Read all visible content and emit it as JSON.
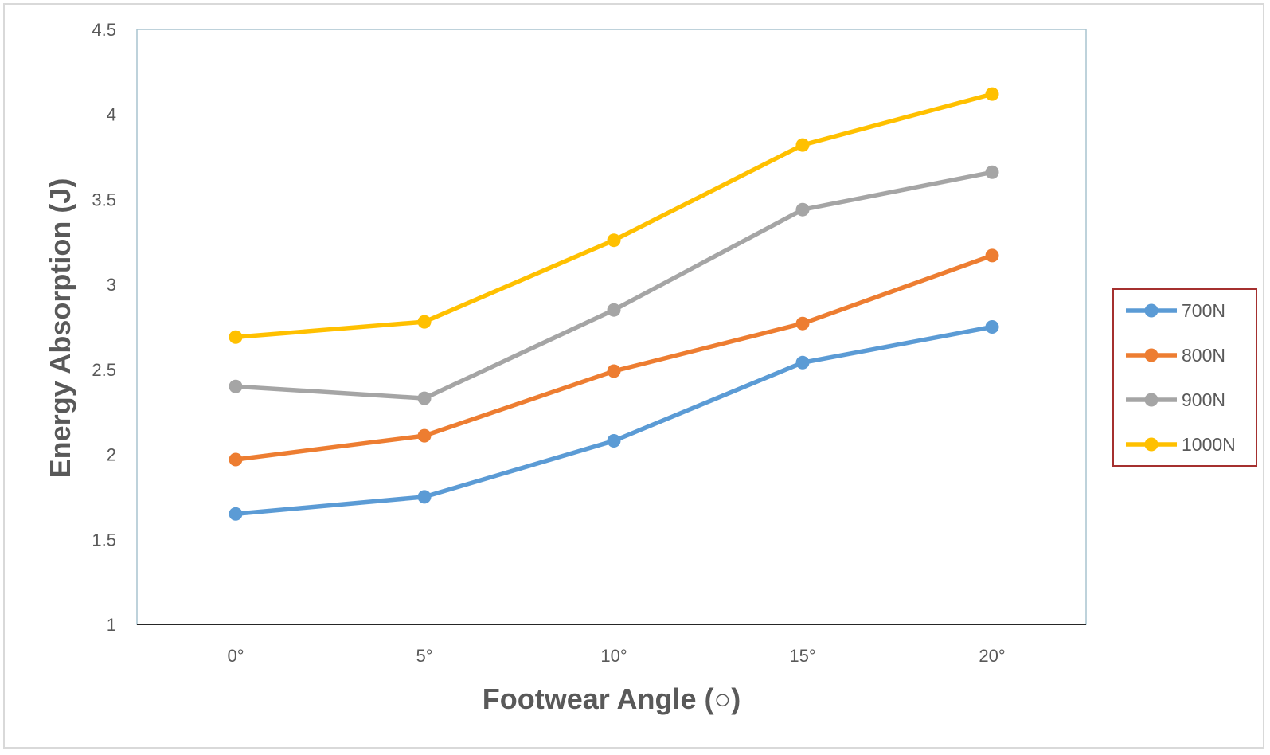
{
  "chart_data": {
    "type": "line",
    "title": "",
    "xlabel": "Footwear Angle (○)",
    "ylabel": "Energy Absorption (J)",
    "categories": [
      "0°",
      "5°",
      "10°",
      "15°",
      "20°"
    ],
    "ylim": [
      1,
      4.5
    ],
    "yticks": [
      "1",
      "1.5",
      "2",
      "2.5",
      "3",
      "3.5",
      "4",
      "4.5"
    ],
    "grid": false,
    "legend_position": "right",
    "series": [
      {
        "name": "700N",
        "color": "#5b9bd5",
        "values": [
          1.65,
          1.75,
          2.08,
          2.54,
          2.75
        ]
      },
      {
        "name": "800N",
        "color": "#ed7d31",
        "values": [
          1.97,
          2.11,
          2.49,
          2.77,
          3.17
        ]
      },
      {
        "name": "900N",
        "color": "#a5a5a5",
        "values": [
          2.4,
          2.33,
          2.85,
          3.44,
          3.66
        ]
      },
      {
        "name": "1000N",
        "color": "#ffc000",
        "values": [
          2.69,
          2.78,
          3.26,
          3.82,
          4.12
        ]
      }
    ]
  }
}
